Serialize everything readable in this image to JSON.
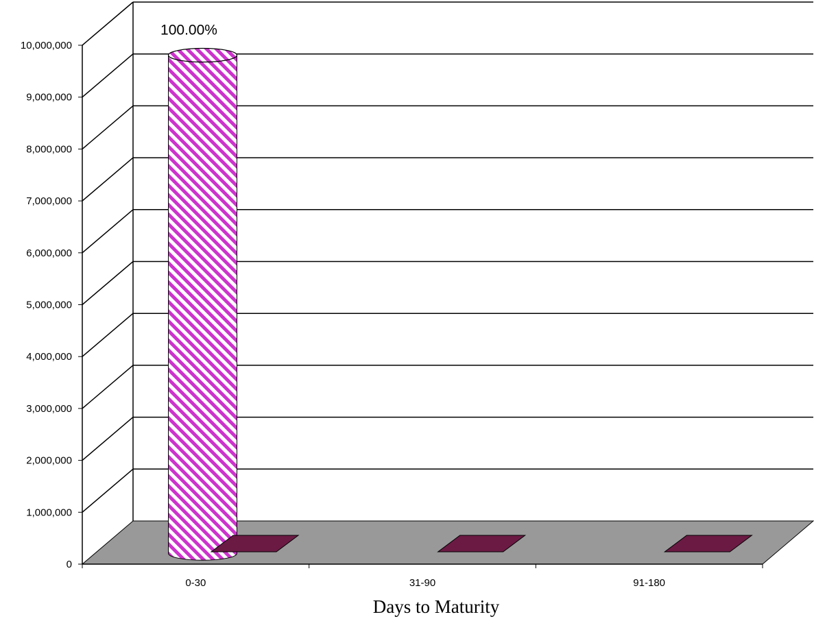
{
  "chart_data": {
    "type": "bar",
    "style": "3d-cylinder",
    "categories": [
      "0-30",
      "31-90",
      "91-180"
    ],
    "series": [
      {
        "values": [
          9600000,
          0,
          0
        ],
        "data_labels": [
          "100.00%",
          "",
          ""
        ],
        "color": "#cc33cc",
        "pattern": "diagonal-stripes"
      },
      {
        "values": [
          0,
          0,
          0
        ],
        "color": "#6b1a44"
      }
    ],
    "xlabel": "Days to Maturity",
    "ylabel": "",
    "ylim": [
      0,
      10000000
    ],
    "yticks": [
      0,
      1000000,
      2000000,
      3000000,
      4000000,
      5000000,
      6000000,
      7000000,
      8000000,
      9000000,
      10000000
    ],
    "ytick_labels": [
      "0",
      "1,000,000",
      "2,000,000",
      "3,000,000",
      "4,000,000",
      "5,000,000",
      "6,000,000",
      "7,000,000",
      "8,000,000",
      "9,000,000",
      "10,000,000"
    ],
    "grid": true,
    "floor_color": "#999999",
    "legend": "none"
  }
}
